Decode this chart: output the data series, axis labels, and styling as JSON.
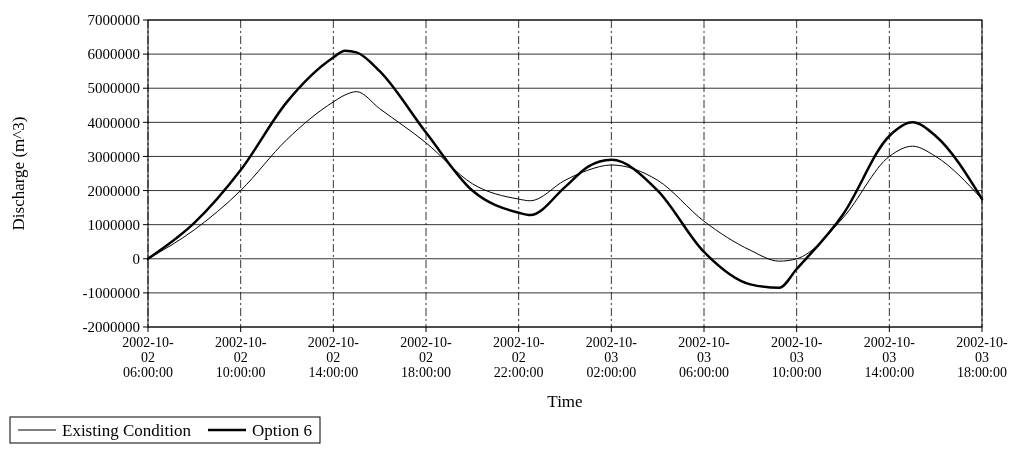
{
  "chart_data": {
    "type": "line",
    "xlabel": "Time",
    "ylabel": "Discharge (m^3)",
    "x": [
      "2002-10-02T06:00",
      "2002-10-02T08:00",
      "2002-10-02T10:00",
      "2002-10-02T12:00",
      "2002-10-02T14:00",
      "2002-10-02T14:30",
      "2002-10-02T15:00",
      "2002-10-02T16:00",
      "2002-10-02T18:00",
      "2002-10-02T20:00",
      "2002-10-02T22:00",
      "2002-10-02T22:30",
      "2002-10-03T00:00",
      "2002-10-03T01:00",
      "2002-10-03T02:00",
      "2002-10-03T04:00",
      "2002-10-03T06:00",
      "2002-10-03T08:00",
      "2002-10-03T09:15",
      "2002-10-03T10:00",
      "2002-10-03T12:00",
      "2002-10-03T14:00",
      "2002-10-03T15:00",
      "2002-10-03T16:00",
      "2002-10-03T18:00"
    ],
    "series": [
      {
        "name": "Existing Condition",
        "color": "#000000",
        "values": [
          0,
          850000,
          2000000,
          3500000,
          4600000,
          4800000,
          4900000,
          4400000,
          3400000,
          2200000,
          1750000,
          1700000,
          2300000,
          2600000,
          2750000,
          2300000,
          1100000,
          250000,
          -70000,
          0,
          1200000,
          3000000,
          3300000,
          3000000,
          1750000
        ]
      },
      {
        "name": "Option 6",
        "color": "#000000",
        "values": [
          0,
          1050000,
          2600000,
          4600000,
          5900000,
          6100000,
          6050000,
          5500000,
          3700000,
          2000000,
          1350000,
          1280000,
          2100000,
          2700000,
          2900000,
          2000000,
          200000,
          -750000,
          -850000,
          -300000,
          1300000,
          3600000,
          4000000,
          3600000,
          1750000
        ]
      }
    ],
    "xlim": [
      "2002-10-02T06:00",
      "2002-10-03T18:00"
    ],
    "xticks": [
      {
        "value": "2002-10-02T06:00",
        "label": "2002-10-02 06:00:00"
      },
      {
        "value": "2002-10-02T10:00",
        "label": "2002-10-02 10:00:00"
      },
      {
        "value": "2002-10-02T14:00",
        "label": "2002-10-02 14:00:00"
      },
      {
        "value": "2002-10-02T18:00",
        "label": "2002-10-02 18:00:00"
      },
      {
        "value": "2002-10-02T22:00",
        "label": "2002-10-02 22:00:00"
      },
      {
        "value": "2002-10-03T02:00",
        "label": "2002-10-03 02:00:00"
      },
      {
        "value": "2002-10-03T06:00",
        "label": "2002-10-03 06:00:00"
      },
      {
        "value": "2002-10-03T10:00",
        "label": "2002-10-03 10:00:00"
      },
      {
        "value": "2002-10-03T14:00",
        "label": "2002-10-03 14:00:00"
      },
      {
        "value": "2002-10-03T18:00",
        "label": "2002-10-03 18:00:00"
      }
    ],
    "ylim": [
      -2000000,
      7000000
    ],
    "yticks": [
      -2000000,
      -1000000,
      0,
      1000000,
      2000000,
      3000000,
      4000000,
      5000000,
      6000000,
      7000000
    ],
    "grid": true,
    "legend": "bottom left",
    "marker": "none",
    "line_style": "solid"
  }
}
